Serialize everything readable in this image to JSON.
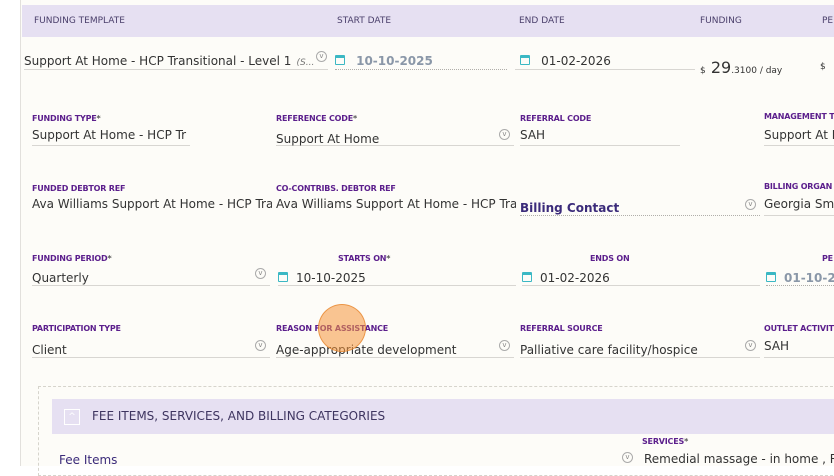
{
  "header": {
    "columns": [
      "FUNDING TEMPLATE",
      "START DATE",
      "END DATE",
      "FUNDING",
      "PE"
    ]
  },
  "row": {
    "template": "Support At Home - HCP Transitional - Level 1",
    "template_suffix": "(S...",
    "start_date": "10-10-2025",
    "end_date": "01-02-2026",
    "funding_currency": "$",
    "funding_whole": "29",
    "funding_fraction": ".3100 / day",
    "period_currency": "$"
  },
  "fields": {
    "funding_type": {
      "label": "FUNDING TYPE",
      "value": "Support At Home - HCP Tr"
    },
    "reference_code": {
      "label": "REFERENCE CODE",
      "value": "Support At Home"
    },
    "referral_code": {
      "label": "REFERRAL CODE",
      "value": "SAH"
    },
    "management": {
      "label": "MANAGEMENT T",
      "value": "Support At I"
    },
    "funded_debtor": {
      "label": "FUNDED DEBTOR REF",
      "value": "Ava Williams Support At Home - HCP Tra"
    },
    "cocontrib_debtor": {
      "label": "CO-CONTRIBS. DEBTOR REF",
      "value": "Ava Williams Support At Home - HCP Tra"
    },
    "billing_contact": {
      "value": "Billing Contact"
    },
    "billing_org": {
      "label": "BILLING ORGAN",
      "value": "Georgia Sm"
    },
    "funding_period": {
      "label": "FUNDING PERIOD",
      "value": "Quarterly"
    },
    "starts_on": {
      "label": "STARTS ON",
      "value": "10-10-2025"
    },
    "ends_on": {
      "label": "ENDS ON",
      "value": "01-02-2026"
    },
    "period": {
      "label": "PE",
      "value": "01-10-20"
    },
    "participation_type": {
      "label": "PARTICIPATION TYPE",
      "value": "Client"
    },
    "reason": {
      "label": "REASON FOR ASSISTANCE",
      "value": "Age-appropriate development"
    },
    "referral_source": {
      "label": "REFERRAL SOURCE",
      "value": "Palliative care facility/hospice"
    },
    "outlet_activity": {
      "label": "OUTLET ACTIVIT",
      "value": "SAH"
    }
  },
  "section": {
    "title": "FEE ITEMS, SERVICES, AND BILLING CATEGORIES",
    "fee_items": "Fee Items",
    "services_label": "SERVICES",
    "services_value": "Remedial massage - in home , Re"
  },
  "required": "*"
}
